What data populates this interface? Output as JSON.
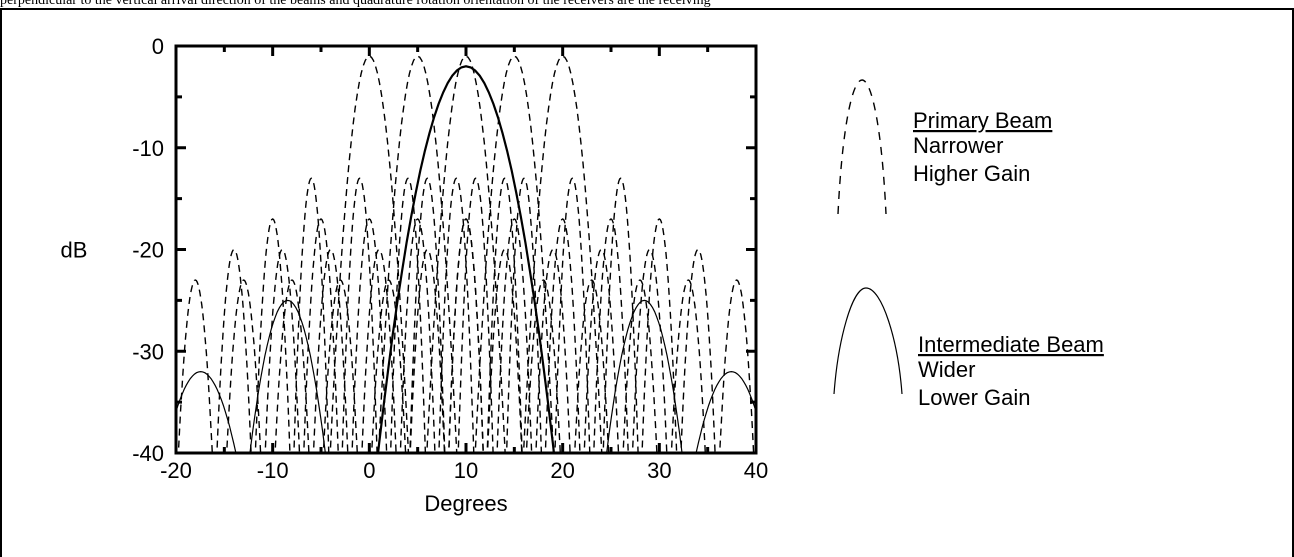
{
  "header_text": "perpendicular to the vertical arrival direction of the beams and quadrature rotation orientation of the receivers are the receiving",
  "chart_data": {
    "type": "line",
    "xlabel": "Degrees",
    "ylabel": "dB",
    "xlim": [
      -20,
      40
    ],
    "ylim": [
      -40,
      0
    ],
    "x_ticks": [
      "-20",
      "-10",
      "0",
      "10",
      "20",
      "30",
      "40"
    ],
    "y_ticks": [
      "0",
      "-10",
      "-20",
      "-30",
      "-40"
    ],
    "grid": false,
    "legend_position": "right",
    "series": [
      {
        "name": "Primary Beam",
        "style": "dashed",
        "beams": [
          {
            "center": 0,
            "peak_db": -1
          },
          {
            "center": 5,
            "peak_db": -1
          },
          {
            "center": 10,
            "peak_db": -1
          },
          {
            "center": 15,
            "peak_db": -1
          },
          {
            "center": 20,
            "peak_db": -1
          }
        ],
        "lobe_width_deg": 4,
        "sidelobe_levels_db": [
          -13,
          -17,
          -20,
          -23
        ]
      },
      {
        "name": "Intermediate Beam",
        "style": "solid",
        "beams": [
          {
            "center": 10,
            "peak_db": -2
          }
        ],
        "lobe_width_deg": 9,
        "sidelobe_levels_db": [
          -25,
          -32,
          -36.5
        ]
      }
    ],
    "legend": [
      {
        "title": "Primary Beam",
        "lines": [
          "Narrower",
          "Higher Gain"
        ],
        "style": "dashed"
      },
      {
        "title": "Intermediate Beam",
        "lines": [
          "Wider",
          "Lower Gain"
        ],
        "style": "solid"
      }
    ]
  }
}
